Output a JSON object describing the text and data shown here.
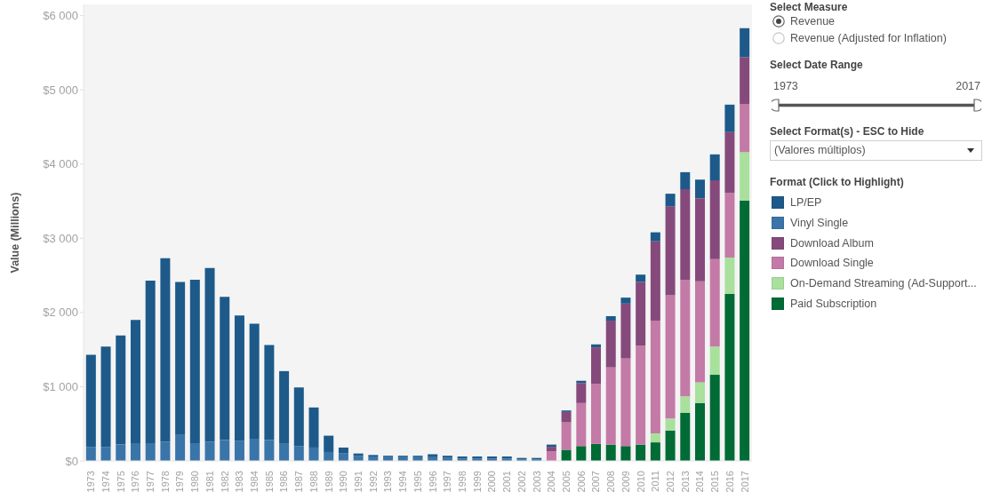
{
  "chart_data": {
    "type": "bar",
    "ylabel": "Value (Millions)",
    "legend_title": "Format (Click to Highlight)",
    "legend": "right",
    "stacked": true,
    "categories": [
      "1973",
      "1974",
      "1975",
      "1976",
      "1977",
      "1978",
      "1979",
      "1980",
      "1981",
      "1982",
      "1983",
      "1984",
      "1985",
      "1986",
      "1987",
      "1988",
      "1989",
      "1990",
      "1991",
      "1992",
      "1993",
      "1994",
      "1995",
      "1996",
      "1997",
      "1998",
      "1999",
      "2000",
      "2001",
      "2002",
      "2003",
      "2004",
      "2005",
      "2006",
      "2007",
      "2008",
      "2009",
      "2010",
      "2011",
      "2012",
      "2013",
      "2014",
      "2015",
      "2016",
      "2017"
    ],
    "series": [
      {
        "name": "Paid Subscription",
        "color": "#006b35",
        "values": [
          null,
          null,
          null,
          null,
          null,
          null,
          null,
          null,
          null,
          null,
          null,
          null,
          null,
          null,
          null,
          null,
          null,
          null,
          null,
          null,
          null,
          null,
          null,
          null,
          null,
          null,
          null,
          null,
          null,
          null,
          null,
          null,
          150,
          200,
          230,
          220,
          200,
          220,
          250,
          410,
          650,
          780,
          1160,
          2250,
          3510
        ]
      },
      {
        "name": "On-Demand Streaming (Ad-Support...",
        "color": "#a8e09c",
        "values": [
          null,
          null,
          null,
          null,
          null,
          null,
          null,
          null,
          null,
          null,
          null,
          null,
          null,
          null,
          null,
          null,
          null,
          null,
          null,
          null,
          null,
          null,
          null,
          null,
          null,
          null,
          null,
          null,
          null,
          null,
          null,
          null,
          null,
          null,
          null,
          null,
          null,
          null,
          120,
          160,
          220,
          280,
          380,
          490,
          650
        ]
      },
      {
        "name": "Download Single",
        "color": "#c47aa6",
        "values": [
          null,
          null,
          null,
          null,
          null,
          null,
          null,
          null,
          null,
          null,
          null,
          null,
          null,
          null,
          null,
          null,
          null,
          null,
          null,
          null,
          null,
          null,
          null,
          null,
          null,
          null,
          null,
          null,
          null,
          null,
          null,
          130,
          370,
          580,
          810,
          1040,
          1180,
          1330,
          1520,
          1660,
          1570,
          1360,
          1180,
          870,
          650
        ]
      },
      {
        "name": "Download Album",
        "color": "#854a7b",
        "values": [
          null,
          null,
          null,
          null,
          null,
          null,
          null,
          null,
          null,
          null,
          null,
          null,
          null,
          null,
          null,
          null,
          null,
          null,
          null,
          null,
          null,
          null,
          null,
          null,
          null,
          null,
          null,
          null,
          null,
          null,
          null,
          60,
          140,
          270,
          490,
          630,
          740,
          860,
          1070,
          1200,
          1220,
          1120,
          1060,
          820,
          630
        ]
      },
      {
        "name": "Vinyl Single",
        "color": "#3a75a9",
        "values": [
          190,
          190,
          220,
          240,
          240,
          260,
          350,
          240,
          260,
          280,
          270,
          300,
          280,
          230,
          200,
          180,
          120,
          100,
          70,
          60,
          60,
          50,
          50,
          50,
          40,
          30,
          30,
          30,
          30,
          20,
          20,
          null,
          null,
          null,
          null,
          null,
          null,
          null,
          null,
          null,
          null,
          null,
          null,
          null,
          null
        ]
      },
      {
        "name": "LP/EP",
        "color": "#1d5a8a",
        "values": [
          1240,
          1350,
          1470,
          1660,
          2190,
          2470,
          2060,
          2200,
          2340,
          1930,
          1690,
          1550,
          1280,
          980,
          790,
          540,
          220,
          80,
          30,
          20,
          10,
          20,
          20,
          40,
          30,
          30,
          30,
          30,
          30,
          20,
          20,
          30,
          20,
          30,
          40,
          60,
          80,
          100,
          120,
          170,
          230,
          250,
          350,
          370,
          390
        ]
      }
    ],
    "ylim": [
      0,
      6150
    ],
    "yticks": [
      {
        "value": 0,
        "label": "$0"
      },
      {
        "value": 1000,
        "label": "$1 000"
      },
      {
        "value": 2000,
        "label": "$2 000"
      },
      {
        "value": 3000,
        "label": "$3 000"
      },
      {
        "value": 4000,
        "label": "$4 000"
      },
      {
        "value": 5000,
        "label": "$5 000"
      },
      {
        "value": 6000,
        "label": "$6 000"
      }
    ],
    "annotations": [
      "Select Measure",
      "Revenue",
      "Revenue (Adjusted for Inflation)",
      "Select Date Range",
      "1973",
      "2017",
      "Select Format(s) - ESC to Hide",
      "(Valores múltiplos)"
    ]
  }
}
